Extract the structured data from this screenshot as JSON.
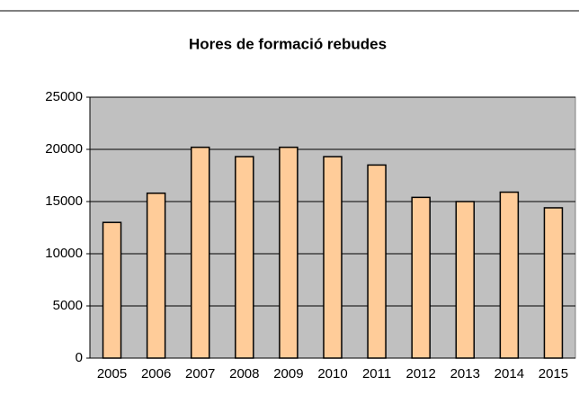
{
  "chart_data": {
    "type": "bar",
    "title": "Hores de formació rebudes",
    "categories": [
      "2005",
      "2006",
      "2007",
      "2008",
      "2009",
      "2010",
      "2011",
      "2012",
      "2013",
      "2014",
      "2015"
    ],
    "values": [
      13000,
      15800,
      20200,
      19300,
      20200,
      19300,
      18500,
      15400,
      15000,
      15900,
      14400
    ],
    "color": "#ffcc99",
    "plot_background": "#c0c0c0",
    "ylim": [
      0,
      25000
    ],
    "yticks": [
      0,
      5000,
      10000,
      15000,
      20000,
      25000
    ],
    "grid": true
  }
}
